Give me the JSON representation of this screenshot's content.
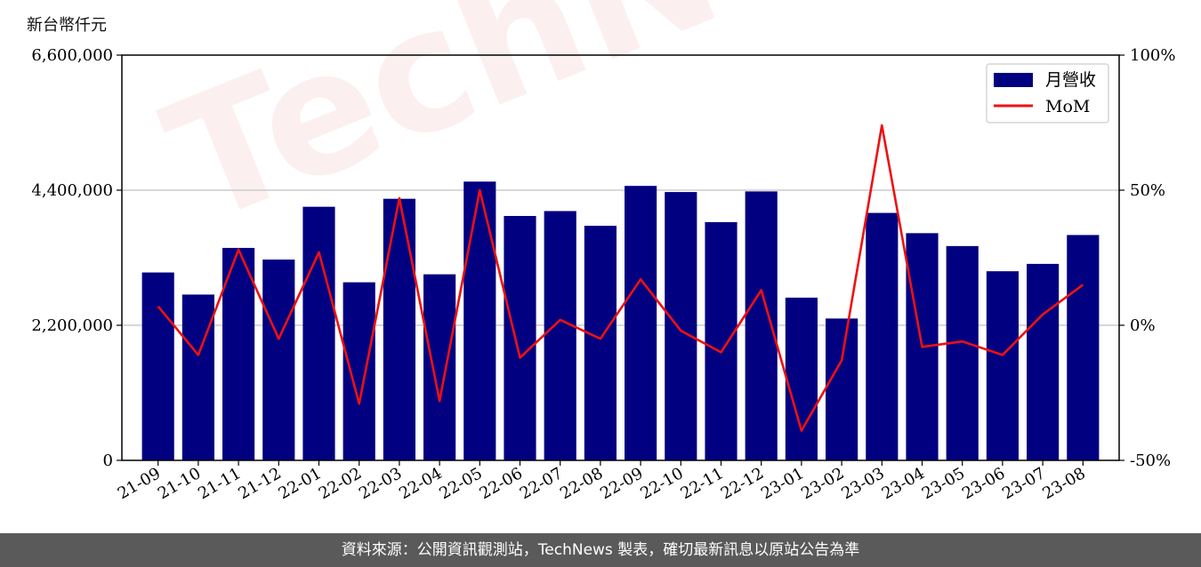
{
  "unit_label": "新台幣仟元",
  "footer_text": "資料來源：公開資訊觀測站，TechNews 製表，確切最新訊息以原站公告為準",
  "watermark_text": "TechNews",
  "colors": {
    "bar": "#000080",
    "line": "#ee1111",
    "grid": "#cccccc",
    "footer_bg": "#5a5a5a"
  },
  "chart_data": {
    "type": "bar",
    "categories": [
      "21-09",
      "21-10",
      "21-11",
      "21-12",
      "22-01",
      "22-02",
      "22-03",
      "22-04",
      "22-05",
      "22-06",
      "22-07",
      "22-08",
      "22-09",
      "22-10",
      "22-11",
      "22-12",
      "23-01",
      "23-02",
      "23-03",
      "23-04",
      "23-05",
      "23-06",
      "23-07",
      "23-08"
    ],
    "series": [
      {
        "name": "月營收",
        "type": "bar",
        "axis": "left",
        "values": [
          3060000,
          2700000,
          3460000,
          3270000,
          4130000,
          2900000,
          4260000,
          3030000,
          4540000,
          3980000,
          4060000,
          3820000,
          4470000,
          4370000,
          3880000,
          4380000,
          2650000,
          2310000,
          4030000,
          3700000,
          3490000,
          3080000,
          3200000,
          3670000
        ]
      },
      {
        "name": "MoM",
        "type": "line",
        "axis": "right",
        "values": [
          7,
          -11,
          28,
          -5,
          27,
          -29,
          47,
          -28,
          50,
          -12,
          2,
          -5,
          17,
          -2,
          -10,
          13,
          -39,
          -13,
          74,
          -8,
          -6,
          -11,
          4,
          15
        ]
      }
    ],
    "y_left": {
      "min": 0,
      "max": 6600000,
      "ticks": [
        0,
        2200000,
        4400000,
        6600000
      ],
      "tick_labels": [
        "0",
        "2,200,000",
        "4,400,000",
        "6,600,000"
      ]
    },
    "y_right": {
      "min": -50,
      "max": 100,
      "ticks": [
        -50,
        0,
        50,
        100
      ],
      "tick_labels": [
        "-50%",
        "0%",
        "50%",
        "100%"
      ]
    },
    "grid": true,
    "legend": "top-right"
  }
}
